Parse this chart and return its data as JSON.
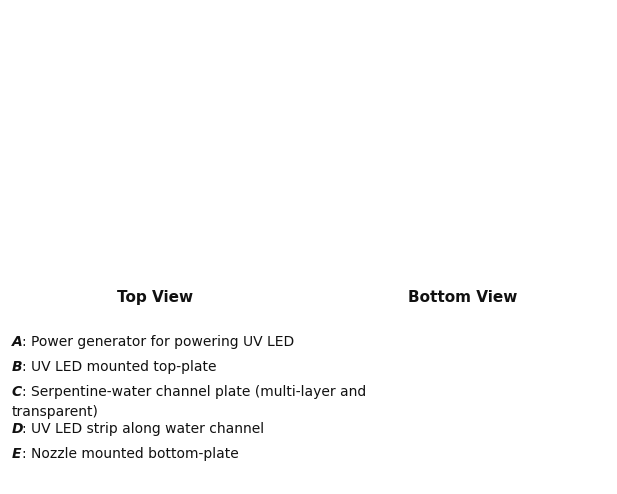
{
  "fig_width": 6.17,
  "fig_height": 4.94,
  "dpi": 100,
  "bg_color": "#ffffff",
  "top_view_label": "Top View",
  "bottom_view_label": "Bottom View",
  "label_fontsize": 11,
  "label_fontweight": "bold",
  "caption_lines": [
    {
      "letter": "A",
      "text": ": Power generator for powering UV LED"
    },
    {
      "letter": "B",
      "text": ": UV LED mounted top-plate"
    },
    {
      "letter": "C",
      "text": ": Serpentine-water channel plate (multi-layer and\ntransparent)"
    },
    {
      "letter": "D",
      "text": ": UV LED strip along water channel"
    },
    {
      "letter": "E",
      "text": ": Nozzle mounted bottom-plate"
    }
  ],
  "caption_fontsize": 10,
  "pink_color": "#f2b8b8",
  "annotation_bg": "#ffffff",
  "arrow_color": "#ffffff"
}
